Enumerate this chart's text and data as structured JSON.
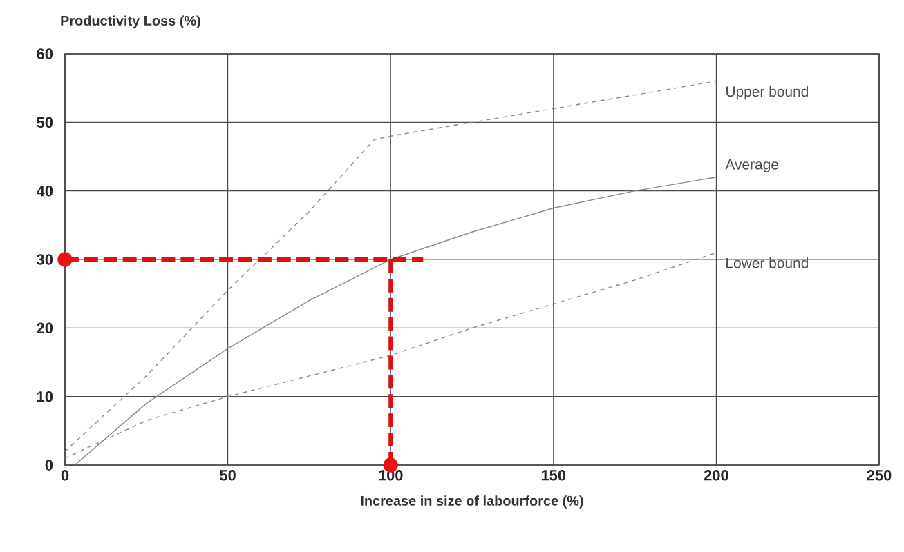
{
  "chart_data": {
    "type": "line",
    "xlabel": "Increase in size of labourforce (%)",
    "ylabel": "Productivity Loss (%)",
    "xlim": [
      0,
      250
    ],
    "ylim": [
      0,
      60
    ],
    "xticks": [
      0,
      50,
      100,
      150,
      200,
      250
    ],
    "yticks": [
      0,
      10,
      20,
      30,
      40,
      50,
      60
    ],
    "grid": true,
    "series": [
      {
        "name": "Upper bound",
        "color": "#888888",
        "line_style": "dashed",
        "marker": "none",
        "x": [
          0,
          25,
          50,
          75,
          95,
          100,
          125,
          150,
          175,
          200
        ],
        "values": [
          2,
          13,
          25.5,
          37,
          47.5,
          48,
          50,
          52,
          54,
          56
        ]
      },
      {
        "name": "Average",
        "color": "#888888",
        "line_style": "solid",
        "marker": "none",
        "x": [
          3,
          25,
          50,
          75,
          100,
          125,
          150,
          175,
          200
        ],
        "values": [
          0,
          9,
          17,
          24,
          30,
          34,
          37.5,
          40,
          42
        ]
      },
      {
        "name": "Lower bound",
        "color": "#888888",
        "line_style": "dashed",
        "marker": "none",
        "x": [
          0,
          25,
          50,
          75,
          100,
          125,
          150,
          175,
          200
        ],
        "values": [
          1,
          6.5,
          10,
          13,
          16,
          20,
          23.5,
          27,
          31
        ]
      },
      {
        "color": "#dd1111",
        "line_style": "dashed",
        "marker": "none",
        "x": [
          0,
          110
        ],
        "values": [
          30,
          30
        ]
      },
      {
        "color": "#dd1111",
        "line_style": "dashed",
        "marker": "none",
        "x": [
          100,
          100
        ],
        "values": [
          30,
          0
        ]
      },
      {
        "type": "scatter",
        "color": "#ee1111",
        "marker": "circle",
        "x": [
          0,
          100
        ],
        "values": [
          30,
          0
        ]
      }
    ]
  }
}
